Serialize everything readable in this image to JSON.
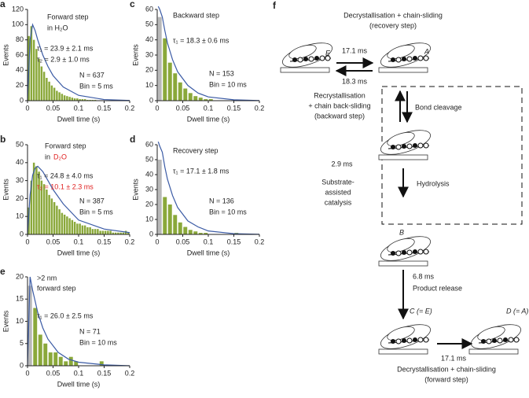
{
  "chart_data": [
    {
      "type": "histogram",
      "panel": "a",
      "xlabel": "Dwell time (s)",
      "ylabel": "Events",
      "annotations": [
        {
          "text": "Forward step"
        },
        {
          "text": "in H₂O"
        },
        {
          "text": "τ₁ = 23.9 ± 2.1 ms"
        },
        {
          "text": "τ₂ = 2.9 ± 1.0 ms"
        },
        {
          "text": "N = 637"
        },
        {
          "text": "Bin = 5 ms"
        }
      ],
      "bins": [
        0,
        0.005,
        0.01,
        0.015,
        0.02,
        0.025,
        0.03,
        0.035,
        0.04,
        0.045,
        0.05,
        0.055,
        0.06,
        0.065,
        0.07,
        0.075,
        0.08,
        0.085,
        0.09,
        0.095,
        0.1,
        0.105,
        0.11,
        0.115,
        0.12,
        0.125,
        0.13,
        0.135,
        0.14,
        0.145,
        0.15,
        0.155,
        0.16,
        0.165,
        0.17,
        0.175,
        0.18,
        0.185,
        0.19,
        0.195,
        0.2
      ],
      "values": [
        85,
        98,
        80,
        68,
        55,
        45,
        38,
        30,
        25,
        20,
        17,
        13,
        11,
        9,
        7,
        6,
        5,
        4,
        3,
        3,
        2,
        2,
        2,
        1,
        1,
        1,
        1,
        0,
        0,
        0,
        0,
        0,
        0,
        0,
        0,
        0,
        0,
        0,
        0,
        0
      ],
      "color": "#8aa83a",
      "excluded_color": "#b8b8b8",
      "excluded_bins": 0,
      "fit": {
        "x": [
          0,
          0.005,
          0.01,
          0.015,
          0.02,
          0.03,
          0.04,
          0.05,
          0.07,
          0.1,
          0.15,
          0.2
        ],
        "values": [
          0,
          80,
          100,
          92,
          80,
          60,
          45,
          33,
          18,
          7,
          1.5,
          0.3
        ],
        "color": "#3b5ba5"
      },
      "xlim": [
        0,
        0.2
      ],
      "xticks": [
        0,
        0.05,
        0.1,
        0.15,
        0.2
      ],
      "ylim": [
        0,
        120
      ],
      "yticks": [
        0,
        20,
        40,
        60,
        80,
        100,
        120
      ]
    },
    {
      "type": "histogram",
      "panel": "c",
      "xlabel": "Dwell time (s)",
      "ylabel": "Events",
      "annotations": [
        {
          "text": "Backward step"
        },
        {
          "text": "τ₁ = 18.3 ± 0.6 ms"
        },
        {
          "text": "N = 153"
        },
        {
          "text": "Bin = 10 ms"
        }
      ],
      "bins": [
        0,
        0.01,
        0.02,
        0.03,
        0.04,
        0.05,
        0.06,
        0.07,
        0.08,
        0.09,
        0.1,
        0.11,
        0.12,
        0.13,
        0.14,
        0.15,
        0.16,
        0.17,
        0.18,
        0.19,
        0.2
      ],
      "values": [
        55,
        41,
        25,
        18,
        12,
        8,
        5,
        3,
        2,
        1,
        1,
        0,
        0,
        0,
        0,
        0,
        0,
        0,
        0,
        0
      ],
      "color": "#8aa83a",
      "excluded_color": "#b8b8b8",
      "excluded_bins": 1,
      "fit": {
        "x": [
          0.002,
          0.005,
          0.01,
          0.015,
          0.02,
          0.03,
          0.04,
          0.06,
          0.08,
          0.1,
          0.15,
          0.2
        ],
        "values": [
          62,
          60,
          55,
          46,
          38,
          27,
          19,
          10,
          5,
          2.5,
          0.6,
          0.1
        ],
        "color": "#3b5ba5"
      },
      "xlim": [
        0,
        0.2
      ],
      "xticks": [
        0,
        0.05,
        0.1,
        0.15,
        0.2
      ],
      "ylim": [
        0,
        60
      ],
      "yticks": [
        0,
        10,
        20,
        30,
        40,
        50,
        60
      ]
    },
    {
      "type": "histogram",
      "panel": "b",
      "xlabel": "Dwell time (s)",
      "ylabel": "Events",
      "annotations": [
        {
          "text": "Forward step"
        },
        {
          "text": "in"
        },
        {
          "text": "D₂O",
          "color": "#e02020"
        },
        {
          "text": "τ₁ = 24.8 ± 4.0 ms"
        },
        {
          "text": "τ₂ = 10.1 ± 2.3 ms",
          "color": "#e02020"
        },
        {
          "text": "N = 387"
        },
        {
          "text": "Bin = 5 ms"
        }
      ],
      "bins": [
        0,
        0.005,
        0.01,
        0.015,
        0.02,
        0.025,
        0.03,
        0.035,
        0.04,
        0.045,
        0.05,
        0.055,
        0.06,
        0.065,
        0.07,
        0.075,
        0.08,
        0.085,
        0.09,
        0.095,
        0.1,
        0.105,
        0.11,
        0.115,
        0.12,
        0.125,
        0.13,
        0.135,
        0.14,
        0.145,
        0.15,
        0.155,
        0.16,
        0.165,
        0.17,
        0.175,
        0.18,
        0.185,
        0.19,
        0.195,
        0.2
      ],
      "values": [
        15,
        30,
        40,
        38,
        35,
        30,
        28,
        25,
        22,
        20,
        18,
        16,
        14,
        12,
        11,
        10,
        9,
        8,
        7,
        6,
        6,
        5,
        5,
        4,
        4,
        3,
        3,
        3,
        2,
        2,
        2,
        2,
        2,
        1,
        1,
        1,
        1,
        1,
        2,
        1
      ],
      "color": "#8aa83a",
      "excluded_color": "#b8b8b8",
      "excluded_bins": 0,
      "fit": {
        "x": [
          0,
          0.005,
          0.01,
          0.015,
          0.02,
          0.03,
          0.04,
          0.05,
          0.07,
          0.1,
          0.15,
          0.2
        ],
        "values": [
          0,
          22,
          33,
          37,
          38,
          35,
          30,
          25,
          17,
          8,
          3,
          1
        ],
        "color": "#3b5ba5"
      },
      "xlim": [
        0,
        0.2
      ],
      "xticks": [
        0,
        0.05,
        0.1,
        0.15,
        0.2
      ],
      "ylim": [
        0,
        50
      ],
      "yticks": [
        0,
        10,
        20,
        30,
        40,
        50
      ]
    },
    {
      "type": "histogram",
      "panel": "d",
      "xlabel": "Dwell time (s)",
      "ylabel": "Events",
      "annotations": [
        {
          "text": "Recovery step"
        },
        {
          "text": "τ₁ = 17.1 ± 1.8 ms"
        },
        {
          "text": "N = 136"
        },
        {
          "text": "Bin = 10 ms"
        }
      ],
      "bins": [
        0,
        0.01,
        0.02,
        0.03,
        0.04,
        0.05,
        0.06,
        0.07,
        0.08,
        0.09,
        0.1,
        0.11,
        0.12,
        0.13,
        0.14,
        0.15,
        0.16,
        0.17,
        0.18,
        0.19,
        0.2
      ],
      "values": [
        50,
        25,
        20,
        13,
        8,
        5,
        3,
        2,
        1,
        1,
        0,
        0,
        0,
        0,
        0,
        1,
        0,
        0,
        0,
        0
      ],
      "color": "#8aa83a",
      "excluded_color": "#b8b8b8",
      "excluded_bins": 1,
      "fit": {
        "x": [
          0.002,
          0.005,
          0.01,
          0.015,
          0.02,
          0.03,
          0.04,
          0.06,
          0.08,
          0.1,
          0.15,
          0.2
        ],
        "values": [
          62,
          59,
          55,
          45,
          37,
          26,
          18,
          9,
          5,
          2.3,
          0.5,
          0.1
        ],
        "color": "#3b5ba5"
      },
      "xlim": [
        0,
        0.2
      ],
      "xticks": [
        0,
        0.05,
        0.1,
        0.15,
        0.2
      ],
      "ylim": [
        0,
        60
      ],
      "yticks": [
        0,
        10,
        20,
        30,
        40,
        50,
        60
      ]
    },
    {
      "type": "histogram",
      "panel": "e",
      "xlabel": "Dwell time (s)",
      "ylabel": "Events",
      "annotations": [
        {
          "text": ">2 nm"
        },
        {
          "text": "forward step"
        },
        {
          "text": "τ₁ = 26.0 ± 2.5 ms"
        },
        {
          "text": "N = 71"
        },
        {
          "text": "Bin = 10 ms"
        }
      ],
      "bins": [
        0,
        0.01,
        0.02,
        0.03,
        0.04,
        0.05,
        0.06,
        0.07,
        0.08,
        0.09,
        0.1,
        0.11,
        0.12,
        0.13,
        0.14,
        0.15,
        0.16,
        0.17,
        0.18,
        0.19,
        0.2
      ],
      "values": [
        18,
        13,
        7,
        5,
        3,
        3,
        2,
        1,
        2,
        1,
        0,
        0,
        0,
        0,
        1,
        0,
        0,
        0,
        0,
        0
      ],
      "color": "#8aa83a",
      "excluded_color": "#b8b8b8",
      "excluded_bins": 1,
      "fit": {
        "x": [
          0,
          0.005,
          0.01,
          0.02,
          0.03,
          0.04,
          0.06,
          0.08,
          0.1,
          0.15,
          0.2
        ],
        "values": [
          0,
          20,
          17,
          12,
          8.5,
          6,
          3,
          1.5,
          0.8,
          0.2,
          0
        ],
        "color": "#3b5ba5"
      },
      "xlim": [
        0,
        0.2
      ],
      "xticks": [
        0,
        0.05,
        0.1,
        0.15,
        0.2
      ],
      "ylim": [
        0,
        20
      ],
      "yticks": [
        0,
        5,
        10,
        15,
        20
      ]
    }
  ],
  "diagram": {
    "panel": "f",
    "texts": [
      "Decrystallisation + chain-sliding",
      "(recovery step)",
      "17.1 ms",
      "18.3 ms",
      "E",
      "A",
      "Recrystallisation",
      "+ chain back-sliding",
      "(backward step)",
      "Bond cleavage",
      "2.9 ms",
      "Substrate-",
      "assisted",
      "catalysis",
      "Hydrolysis",
      "B",
      "6.8 ms",
      "Product release",
      "C (= E)",
      "D (= A)",
      "17.1 ms",
      "Decrystallisation + chain-sliding",
      "(forward step)"
    ]
  }
}
